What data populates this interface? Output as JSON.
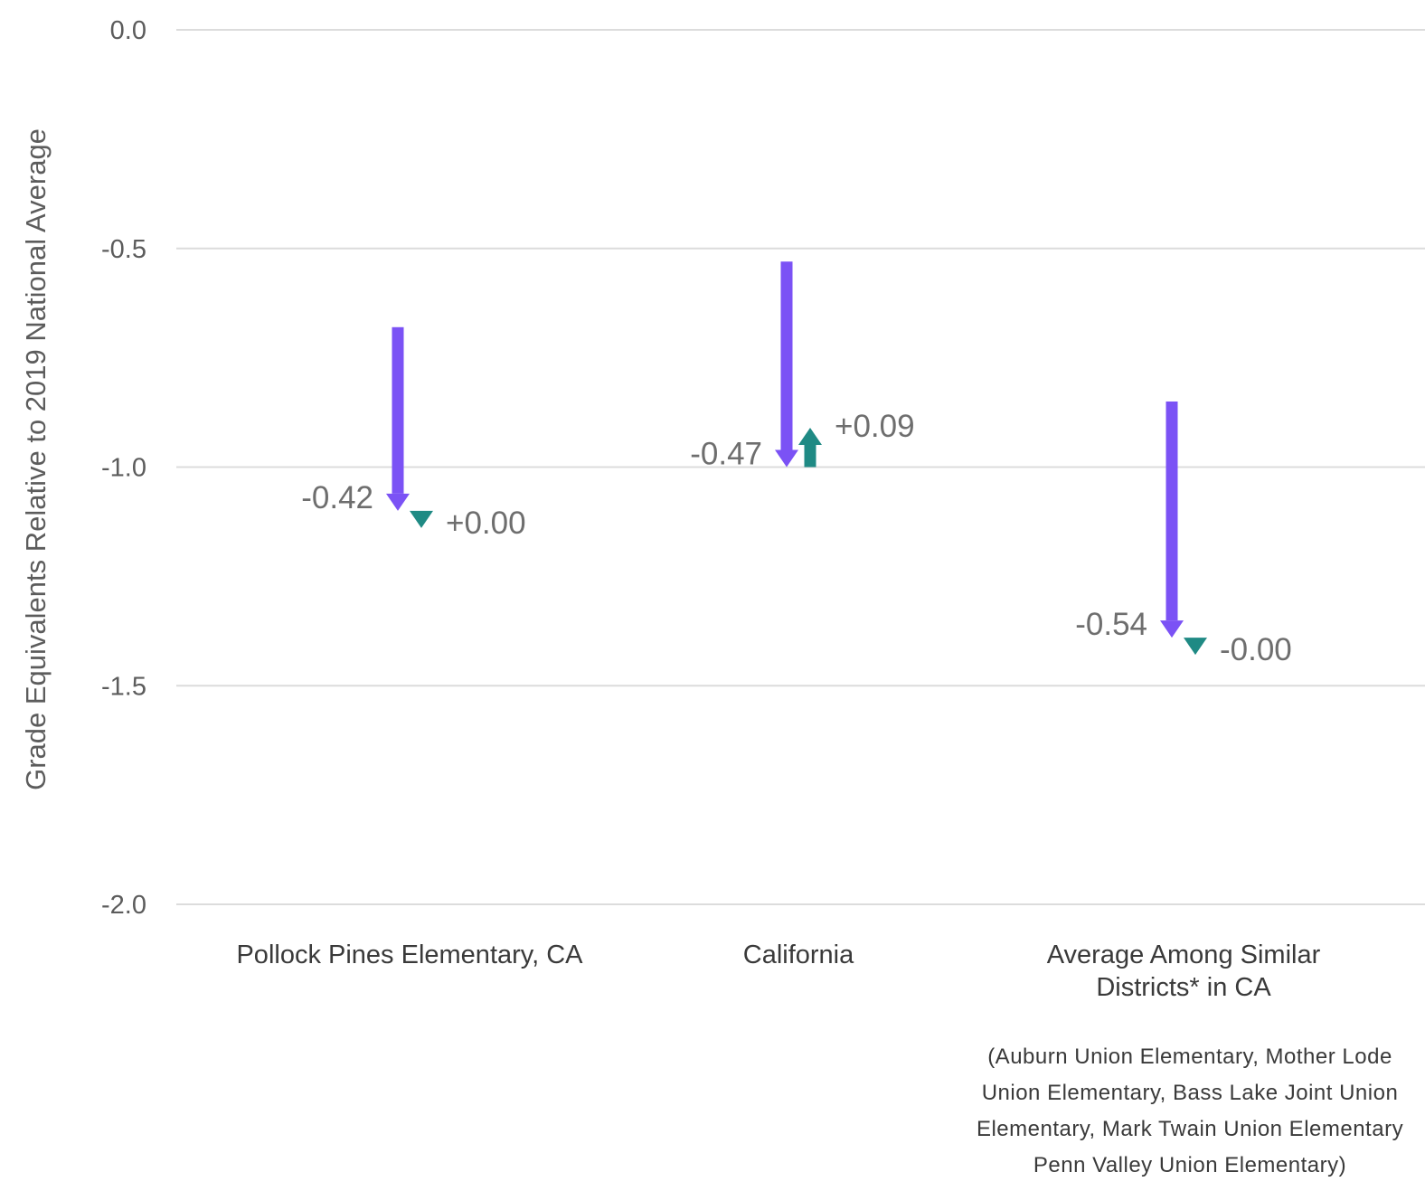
{
  "chart_data": {
    "type": "arrow",
    "ylabel": "Grade Equivalents Relative to 2019 National Average",
    "ylim": [
      -2.0,
      0.0
    ],
    "yticks": [
      {
        "value": 0.0,
        "label": "0.0"
      },
      {
        "value": -0.5,
        "label": "-0.5"
      },
      {
        "value": -1.0,
        "label": "-1.0"
      },
      {
        "value": -1.5,
        "label": "-1.5"
      },
      {
        "value": -2.0,
        "label": "-2.0"
      }
    ],
    "grid": true,
    "categories": [
      {
        "lines": [
          "Pollock Pines Elementary, CA"
        ]
      },
      {
        "lines": [
          "California"
        ]
      },
      {
        "lines": [
          "Average Among Similar",
          "Districts* in CA"
        ]
      }
    ],
    "series": [
      {
        "color": "#7b52f5",
        "points": [
          {
            "start": -0.68,
            "end": -1.1,
            "label": "-0.42"
          },
          {
            "start": -0.53,
            "end": -1.0,
            "label": "-0.47"
          },
          {
            "start": -0.85,
            "end": -1.39,
            "label": "-0.54"
          }
        ]
      },
      {
        "color": "#1f8a84",
        "points": [
          {
            "start": -1.1,
            "end": -1.1,
            "label": "+0.00"
          },
          {
            "start": -1.0,
            "end": -0.91,
            "label": "+0.09"
          },
          {
            "start": -1.39,
            "end": -1.39,
            "label": "-0.00"
          }
        ]
      }
    ],
    "footnote": [
      "(Auburn Union Elementary, Mother Lode",
      "Union Elementary, Bass Lake Joint Union",
      "Elementary, Mark Twain Union Elementary",
      "Penn Valley Union Elementary)"
    ]
  }
}
